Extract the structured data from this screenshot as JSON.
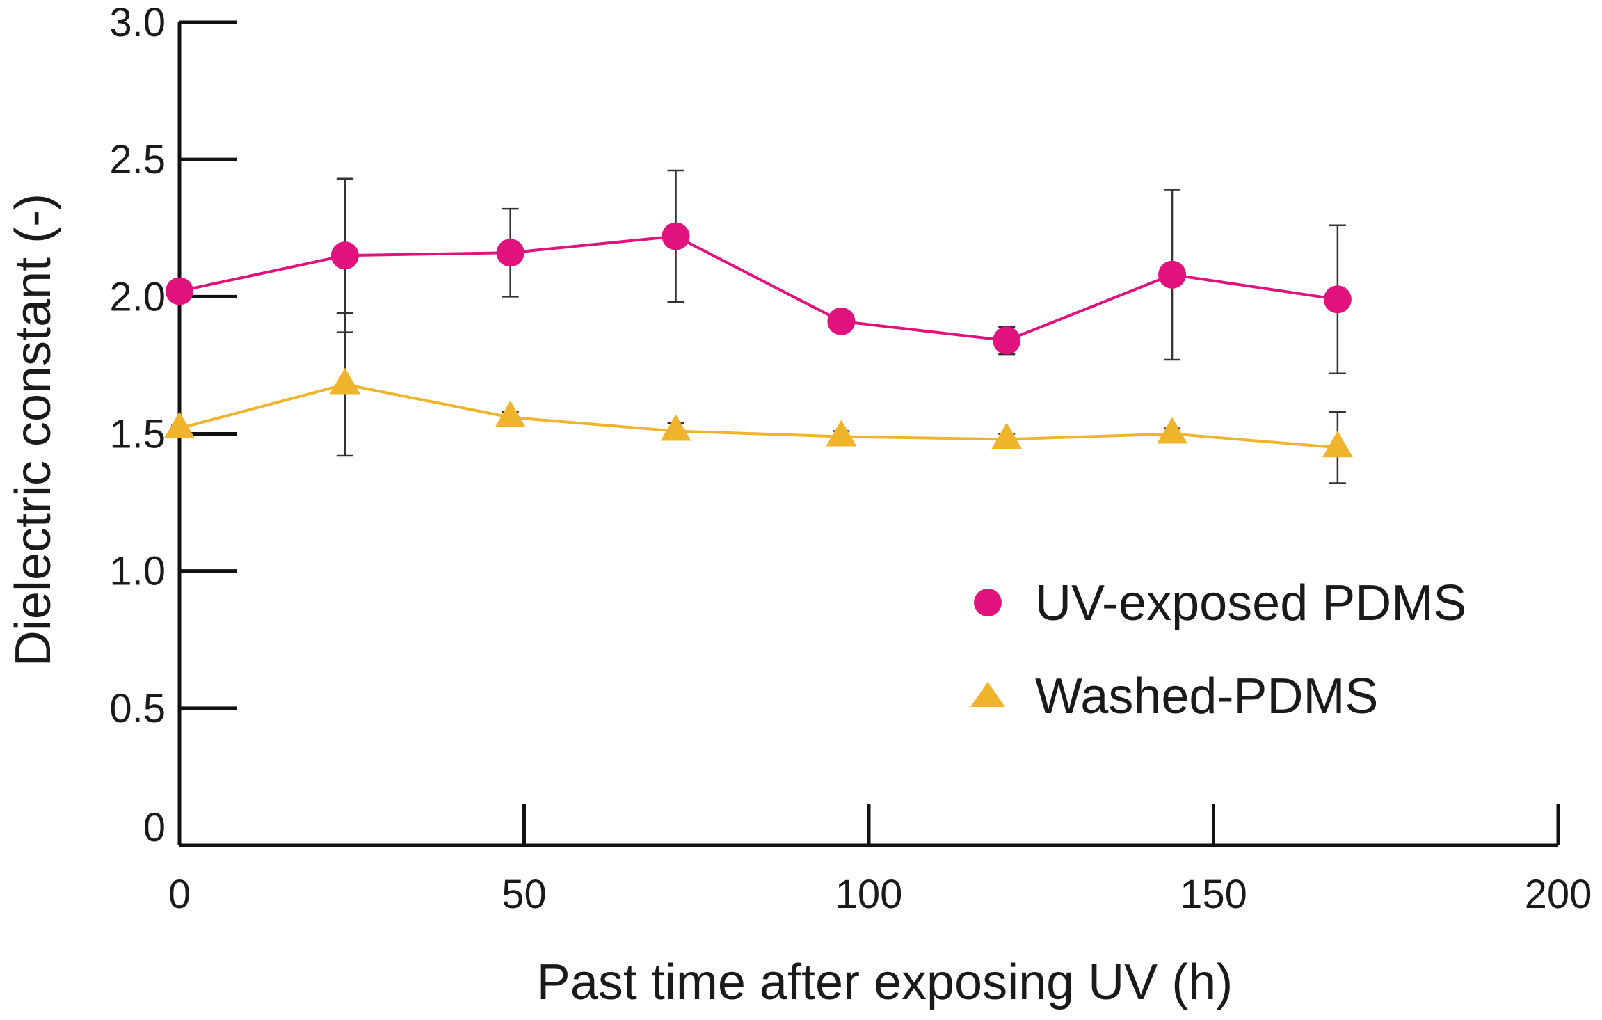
{
  "chart_data": {
    "type": "line",
    "title": "",
    "xlabel": "Past time after exposing UV (h)",
    "ylabel": "Dielectric constant (-)",
    "xlim": [
      0,
      200
    ],
    "ylim": [
      0,
      3.0
    ],
    "x_ticks": [
      0,
      50,
      100,
      150,
      200
    ],
    "x_tick_labels": [
      "0",
      "50",
      "100",
      "150",
      "200"
    ],
    "y_ticks": [
      0,
      0.5,
      1.0,
      1.5,
      2.0,
      2.5,
      3.0
    ],
    "y_tick_labels": [
      "0",
      "0.5",
      "1.0",
      "1.5",
      "2.0",
      "2.5",
      "3.0"
    ],
    "grid": false,
    "legend_position": "right",
    "series": [
      {
        "name": "UV-exposed PDMS",
        "marker": "circle",
        "color": "#e0127d",
        "x": [
          0,
          24,
          48,
          72,
          96,
          120,
          144,
          168
        ],
        "y": [
          2.02,
          2.15,
          2.16,
          2.22,
          1.91,
          1.84,
          2.08,
          1.99
        ],
        "error": [
          0.02,
          0.28,
          0.16,
          0.24,
          0.02,
          0.05,
          0.31,
          0.27
        ]
      },
      {
        "name": "Washed-PDMS",
        "marker": "triangle",
        "color": "#f0b42c",
        "x": [
          0,
          24,
          48,
          72,
          96,
          120,
          144,
          168
        ],
        "y": [
          1.52,
          1.68,
          1.56,
          1.51,
          1.49,
          1.48,
          1.5,
          1.45
        ],
        "error": [
          0.01,
          0.26,
          0.02,
          0.03,
          0.02,
          0.02,
          0.02,
          0.13
        ]
      }
    ]
  }
}
